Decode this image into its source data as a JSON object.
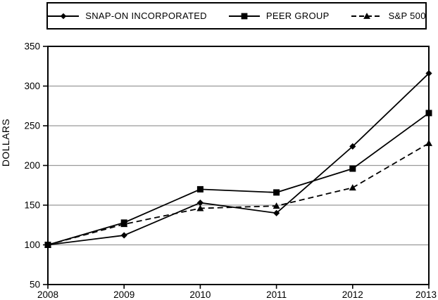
{
  "window": {
    "background": "#ffffff"
  },
  "legend": {
    "items": [
      {
        "label": "SNAP-ON INCORPORATED",
        "marker": "diamond",
        "line_style": "solid"
      },
      {
        "label": "PEER GROUP",
        "marker": "square",
        "line_style": "solid"
      },
      {
        "label": "S&P 500",
        "marker": "triangle",
        "line_style": "dashed"
      }
    ]
  },
  "chart_data": {
    "type": "line",
    "title": "",
    "xlabel": "",
    "ylabel": "DOLLARS",
    "x": [
      2008,
      2009,
      2010,
      2011,
      2012,
      2013
    ],
    "xtick_labels": [
      "2008",
      "2009",
      "2010",
      "2011",
      "2012",
      "2013"
    ],
    "ylim": [
      50,
      350
    ],
    "ytick_values": [
      50,
      100,
      150,
      200,
      250,
      300,
      350
    ],
    "ytick_labels": [
      "50",
      "100",
      "150",
      "200",
      "250",
      "300",
      "350"
    ],
    "gridline_values": [
      100,
      150,
      200,
      250,
      300
    ],
    "grid": true,
    "legend_position": "top",
    "series": [
      {
        "name": "SNAP-ON INCORPORATED",
        "marker": "diamond",
        "line_style": "solid",
        "values": [
          100,
          112,
          153,
          140,
          224,
          316
        ]
      },
      {
        "name": "PEER GROUP",
        "marker": "square",
        "line_style": "solid",
        "values": [
          100,
          128,
          170,
          166,
          196,
          266
        ]
      },
      {
        "name": "S&P 500",
        "marker": "triangle",
        "line_style": "dashed",
        "values": [
          100,
          126,
          146,
          149,
          172,
          228
        ]
      }
    ],
    "colors": {
      "axis": "#000000",
      "grid": "#999999",
      "series": "#000000",
      "background": "#ffffff"
    }
  }
}
